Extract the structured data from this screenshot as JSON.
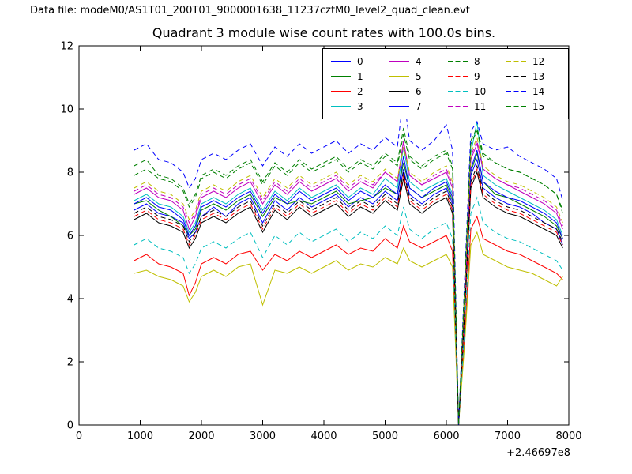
{
  "header": {
    "datafile": "Data file: modeM0/AS1T01_200T01_9000001638_11237cztM0_level2_quad_clean.evt"
  },
  "chart_data": {
    "type": "line",
    "title": "Quadrant 3 module wise count rates with 100.0s bins.",
    "xlabel": "",
    "ylabel": "",
    "xlim": [
      0,
      8000
    ],
    "ylim": [
      0,
      12
    ],
    "xticks": [
      0,
      1000,
      2000,
      3000,
      4000,
      5000,
      6000,
      7000,
      8000
    ],
    "yticks": [
      0,
      2,
      4,
      6,
      8,
      10,
      12
    ],
    "x_offset_label": "+2.46697e8",
    "grid": false,
    "legend_position": "upper right",
    "x": [
      900,
      1100,
      1300,
      1500,
      1700,
      1800,
      1900,
      2000,
      2200,
      2400,
      2600,
      2800,
      3000,
      3200,
      3400,
      3600,
      3800,
      4000,
      4200,
      4400,
      4600,
      4800,
      5000,
      5200,
      5300,
      5400,
      5600,
      5800,
      6000,
      6100,
      6200,
      6300,
      6400,
      6500,
      6600,
      6800,
      7000,
      7200,
      7400,
      7600,
      7800,
      7900
    ],
    "series": [
      {
        "name": "0",
        "color": "#0000ff",
        "dash": false,
        "values": [
          6.8,
          7.0,
          6.7,
          6.6,
          6.4,
          5.9,
          6.1,
          6.6,
          6.9,
          6.6,
          7.0,
          7.2,
          6.4,
          7.1,
          6.8,
          7.2,
          6.9,
          7.1,
          7.3,
          6.9,
          7.2,
          7.0,
          7.4,
          7.1,
          8.1,
          7.3,
          7.0,
          7.3,
          7.5,
          7.0,
          0.0,
          3.6,
          7.9,
          8.4,
          7.5,
          7.2,
          7.0,
          6.9,
          6.7,
          6.4,
          6.2,
          5.7
        ]
      },
      {
        "name": "1",
        "color": "#008000",
        "dash": false,
        "values": [
          7.0,
          7.1,
          6.8,
          6.6,
          6.3,
          6.0,
          6.2,
          6.8,
          7.0,
          6.8,
          7.1,
          7.3,
          6.6,
          7.2,
          7.0,
          7.1,
          7.0,
          7.2,
          7.4,
          7.0,
          7.1,
          7.2,
          7.5,
          7.3,
          8.3,
          7.5,
          7.2,
          7.4,
          7.6,
          7.1,
          0.0,
          3.8,
          8.0,
          8.6,
          7.7,
          7.3,
          7.2,
          7.0,
          6.8,
          6.6,
          6.3,
          5.9
        ]
      },
      {
        "name": "2",
        "color": "#ff0000",
        "dash": false,
        "values": [
          5.2,
          5.4,
          5.1,
          5.0,
          4.8,
          4.1,
          4.5,
          5.1,
          5.3,
          5.1,
          5.4,
          5.5,
          4.9,
          5.4,
          5.2,
          5.5,
          5.3,
          5.5,
          5.7,
          5.4,
          5.6,
          5.5,
          5.9,
          5.6,
          6.3,
          5.8,
          5.6,
          5.8,
          6.0,
          5.5,
          0.0,
          2.9,
          6.2,
          6.6,
          5.9,
          5.7,
          5.5,
          5.4,
          5.2,
          5.0,
          4.8,
          4.6
        ]
      },
      {
        "name": "3",
        "color": "#00bfbf",
        "dash": false,
        "values": [
          7.1,
          7.3,
          7.0,
          6.9,
          6.6,
          6.1,
          6.4,
          7.0,
          7.2,
          7.0,
          7.3,
          7.5,
          6.8,
          7.4,
          7.1,
          7.5,
          7.2,
          7.4,
          7.6,
          7.2,
          7.5,
          7.3,
          7.8,
          7.5,
          8.8,
          7.7,
          7.4,
          7.6,
          7.8,
          7.3,
          0.0,
          4.0,
          8.6,
          9.6,
          7.9,
          7.6,
          7.4,
          7.2,
          7.0,
          6.8,
          6.5,
          6.0
        ]
      },
      {
        "name": "4",
        "color": "#bf00bf",
        "dash": false,
        "values": [
          7.3,
          7.5,
          7.2,
          7.1,
          6.8,
          6.2,
          6.6,
          7.2,
          7.4,
          7.2,
          7.5,
          7.7,
          7.0,
          7.6,
          7.3,
          7.7,
          7.4,
          7.6,
          7.8,
          7.4,
          7.7,
          7.5,
          8.0,
          7.7,
          9.0,
          7.9,
          7.6,
          7.8,
          8.0,
          7.5,
          0.0,
          4.1,
          8.4,
          8.9,
          8.1,
          7.8,
          7.6,
          7.4,
          7.2,
          7.0,
          6.7,
          6.2
        ]
      },
      {
        "name": "5",
        "color": "#bfbf00",
        "dash": false,
        "values": [
          4.8,
          4.9,
          4.7,
          4.6,
          4.4,
          3.9,
          4.2,
          4.7,
          4.9,
          4.7,
          5.0,
          5.1,
          3.8,
          4.9,
          4.8,
          5.0,
          4.8,
          5.0,
          5.2,
          4.9,
          5.1,
          5.0,
          5.3,
          5.1,
          5.6,
          5.2,
          5.0,
          5.2,
          5.4,
          5.0,
          0.0,
          2.6,
          5.7,
          6.1,
          5.4,
          5.2,
          5.0,
          4.9,
          4.8,
          4.6,
          4.4,
          4.7
        ]
      },
      {
        "name": "6",
        "color": "#000000",
        "dash": false,
        "values": [
          6.5,
          6.7,
          6.4,
          6.3,
          6.1,
          5.6,
          5.9,
          6.4,
          6.6,
          6.4,
          6.7,
          6.9,
          6.1,
          6.8,
          6.5,
          6.9,
          6.6,
          6.8,
          7.0,
          6.6,
          6.9,
          6.7,
          7.1,
          6.8,
          7.8,
          7.0,
          6.7,
          7.0,
          7.2,
          6.7,
          0.0,
          3.5,
          7.5,
          8.0,
          7.2,
          6.9,
          6.7,
          6.6,
          6.4,
          6.2,
          6.0,
          5.6
        ]
      },
      {
        "name": "7",
        "color": "#0000ff",
        "dash": false,
        "values": [
          7.0,
          7.2,
          6.9,
          6.8,
          6.5,
          6.0,
          6.3,
          6.9,
          7.1,
          6.9,
          7.2,
          7.4,
          6.7,
          7.3,
          7.0,
          7.4,
          7.1,
          7.3,
          7.5,
          7.1,
          7.4,
          7.2,
          7.6,
          7.3,
          8.5,
          7.5,
          7.2,
          7.5,
          7.7,
          7.2,
          0.0,
          3.9,
          8.1,
          8.7,
          7.7,
          7.4,
          7.2,
          7.1,
          6.9,
          6.7,
          6.4,
          5.9
        ]
      },
      {
        "name": "8",
        "color": "#008000",
        "dash": true,
        "values": [
          7.9,
          8.1,
          7.8,
          7.7,
          7.4,
          6.9,
          7.2,
          7.8,
          8.0,
          7.8,
          8.1,
          8.3,
          7.6,
          8.2,
          7.9,
          8.3,
          8.0,
          8.2,
          8.4,
          8.0,
          8.3,
          8.1,
          8.5,
          8.2,
          9.2,
          8.4,
          8.1,
          8.4,
          8.6,
          8.1,
          0.0,
          4.4,
          9.0,
          9.4,
          8.6,
          8.3,
          8.1,
          8.0,
          7.8,
          7.6,
          7.3,
          6.8
        ]
      },
      {
        "name": "9",
        "color": "#ff0000",
        "dash": true,
        "values": [
          6.6,
          6.8,
          6.5,
          6.4,
          6.2,
          5.7,
          6.0,
          6.5,
          6.7,
          6.5,
          6.8,
          7.0,
          6.2,
          6.9,
          6.6,
          7.0,
          6.7,
          6.9,
          7.1,
          6.7,
          7.0,
          6.8,
          7.2,
          6.9,
          7.9,
          7.1,
          6.8,
          7.1,
          7.3,
          6.8,
          0.0,
          3.6,
          7.6,
          8.1,
          7.3,
          7.0,
          6.8,
          6.7,
          6.5,
          6.3,
          6.1,
          5.7
        ]
      },
      {
        "name": "10",
        "color": "#00bfbf",
        "dash": true,
        "values": [
          5.7,
          5.9,
          5.6,
          5.5,
          5.3,
          4.8,
          5.1,
          5.6,
          5.8,
          5.6,
          5.9,
          6.1,
          5.3,
          6.0,
          5.7,
          6.1,
          5.8,
          6.0,
          6.2,
          5.8,
          6.1,
          5.9,
          6.3,
          6.0,
          6.9,
          6.2,
          5.9,
          6.2,
          6.4,
          5.9,
          0.0,
          3.1,
          6.7,
          7.2,
          6.4,
          6.1,
          5.9,
          5.8,
          5.6,
          5.4,
          5.2,
          4.9
        ]
      },
      {
        "name": "11",
        "color": "#bf00bf",
        "dash": true,
        "values": [
          7.4,
          7.6,
          7.3,
          7.2,
          6.9,
          6.4,
          6.7,
          7.3,
          7.5,
          7.3,
          7.6,
          7.8,
          7.1,
          7.7,
          7.4,
          7.8,
          7.5,
          7.7,
          7.9,
          7.5,
          7.8,
          7.6,
          8.0,
          7.7,
          8.9,
          7.9,
          7.6,
          7.9,
          8.1,
          7.6,
          0.0,
          4.1,
          8.5,
          9.0,
          8.1,
          7.8,
          7.6,
          7.5,
          7.3,
          7.1,
          6.8,
          6.3
        ]
      },
      {
        "name": "12",
        "color": "#bfbf00",
        "dash": true,
        "values": [
          7.5,
          7.7,
          7.4,
          7.3,
          7.0,
          6.5,
          6.8,
          7.4,
          7.6,
          7.4,
          7.7,
          7.9,
          7.2,
          7.8,
          7.5,
          7.9,
          7.6,
          7.8,
          8.0,
          7.6,
          7.9,
          7.7,
          8.1,
          7.8,
          8.8,
          8.0,
          7.7,
          8.0,
          8.2,
          7.7,
          0.0,
          4.2,
          8.6,
          9.1,
          8.2,
          7.9,
          7.7,
          7.6,
          7.4,
          7.2,
          6.9,
          6.4
        ]
      },
      {
        "name": "13",
        "color": "#000000",
        "dash": true,
        "values": [
          6.7,
          6.9,
          6.6,
          6.5,
          6.3,
          5.8,
          6.1,
          6.6,
          6.8,
          6.6,
          6.9,
          7.1,
          6.3,
          7.0,
          6.7,
          7.1,
          6.8,
          7.0,
          7.2,
          6.8,
          7.1,
          6.9,
          7.3,
          7.0,
          8.0,
          7.2,
          6.9,
          7.2,
          7.4,
          6.9,
          0.0,
          3.7,
          7.7,
          8.2,
          7.4,
          7.1,
          6.9,
          6.8,
          6.6,
          6.4,
          6.2,
          5.8
        ]
      },
      {
        "name": "14",
        "color": "#0000ff",
        "dash": true,
        "values": [
          8.7,
          8.9,
          8.4,
          8.3,
          8.0,
          7.5,
          7.8,
          8.4,
          8.6,
          8.4,
          8.7,
          8.9,
          8.2,
          8.8,
          8.5,
          8.9,
          8.6,
          8.8,
          9.0,
          8.6,
          8.9,
          8.7,
          9.1,
          8.8,
          10.4,
          9.0,
          8.7,
          9.0,
          9.5,
          8.7,
          0.0,
          4.7,
          9.3,
          9.6,
          8.9,
          8.7,
          8.8,
          8.5,
          8.3,
          8.1,
          7.8,
          7.1
        ]
      },
      {
        "name": "15",
        "color": "#008000",
        "dash": true,
        "values": [
          8.2,
          8.4,
          7.9,
          7.8,
          7.5,
          7.0,
          7.3,
          7.9,
          8.1,
          7.9,
          8.2,
          8.4,
          7.7,
          8.3,
          8.0,
          8.4,
          8.1,
          8.3,
          8.5,
          8.1,
          8.4,
          8.2,
          8.6,
          8.3,
          9.4,
          8.5,
          8.2,
          8.5,
          8.7,
          8.2,
          0.0,
          4.5,
          8.9,
          9.3,
          8.5,
          8.3,
          8.1,
          8.0,
          7.8,
          7.6,
          7.3,
          6.7
        ]
      }
    ]
  }
}
